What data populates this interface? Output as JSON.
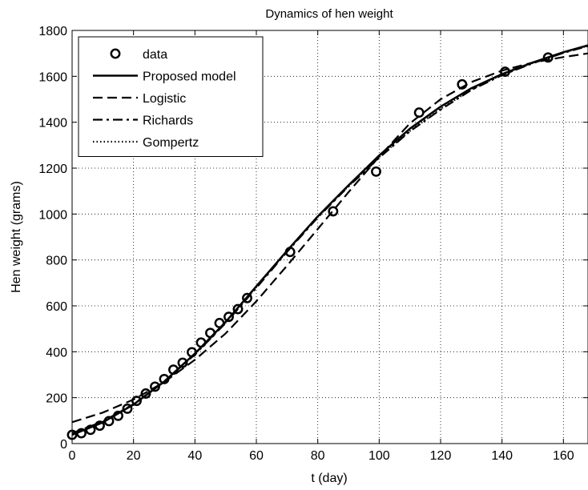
{
  "chart_data": {
    "type": "line",
    "title": "Dynamics of hen weight",
    "xlabel": "t (day)",
    "ylabel": "Hen weight (grams)",
    "xlim": [
      0,
      168
    ],
    "ylim": [
      0,
      1800
    ],
    "xticks": [
      0,
      20,
      40,
      60,
      80,
      100,
      120,
      140,
      160
    ],
    "yticks": [
      0,
      200,
      400,
      600,
      800,
      1000,
      1200,
      1400,
      1600,
      1800
    ],
    "grid": true,
    "legend_position": "top-left",
    "series": [
      {
        "name": "data",
        "style": "markers",
        "marker": "circle",
        "color": "#000000",
        "x": [
          0,
          3,
          6,
          9,
          12,
          15,
          18,
          21,
          24,
          27,
          30,
          33,
          36,
          39,
          42,
          45,
          48,
          51,
          54,
          57,
          71,
          85,
          99,
          113,
          127,
          141,
          155
        ],
        "y": [
          38,
          45,
          60,
          78,
          98,
          121,
          152,
          186,
          218,
          248,
          281,
          322,
          352,
          398,
          440,
          482,
          525,
          552,
          586,
          634,
          835,
          1012,
          1185,
          1442,
          1565,
          1620,
          1682
        ]
      },
      {
        "name": "Proposed model",
        "style": "solid",
        "color": "#000000",
        "x": [
          0,
          10,
          20,
          30,
          40,
          50,
          60,
          70,
          80,
          90,
          100,
          110,
          120,
          130,
          140,
          150,
          160,
          168
        ],
        "y": [
          38,
          92,
          170,
          270,
          392,
          530,
          685,
          840,
          990,
          1125,
          1255,
          1372,
          1468,
          1548,
          1610,
          1660,
          1705,
          1735
        ]
      },
      {
        "name": "Logistic",
        "style": "dashed",
        "color": "#000000",
        "x": [
          0,
          10,
          20,
          30,
          40,
          50,
          60,
          70,
          80,
          90,
          100,
          110,
          120,
          130,
          140,
          150,
          160,
          168
        ],
        "y": [
          93,
          135,
          192,
          268,
          365,
          480,
          620,
          775,
          935,
          1095,
          1250,
          1395,
          1500,
          1575,
          1625,
          1660,
          1684,
          1700
        ]
      },
      {
        "name": "Richards",
        "style": "dashdot",
        "color": "#000000",
        "x": [
          0,
          10,
          20,
          30,
          40,
          50,
          60,
          70,
          80,
          90,
          100,
          110,
          120,
          130,
          140,
          150,
          160,
          168
        ],
        "y": [
          45,
          96,
          172,
          270,
          388,
          525,
          678,
          835,
          985,
          1120,
          1245,
          1360,
          1455,
          1540,
          1605,
          1657,
          1702,
          1732
        ]
      },
      {
        "name": "Gompertz",
        "style": "dotted",
        "color": "#000000",
        "x": [
          0,
          10,
          20,
          30,
          40,
          50,
          60,
          70,
          80,
          90,
          100,
          110,
          120,
          130,
          140,
          150,
          160,
          168
        ],
        "y": [
          42,
          95,
          171,
          270,
          390,
          528,
          682,
          838,
          988,
          1122,
          1248,
          1362,
          1458,
          1542,
          1607,
          1658,
          1703,
          1733
        ]
      }
    ]
  }
}
